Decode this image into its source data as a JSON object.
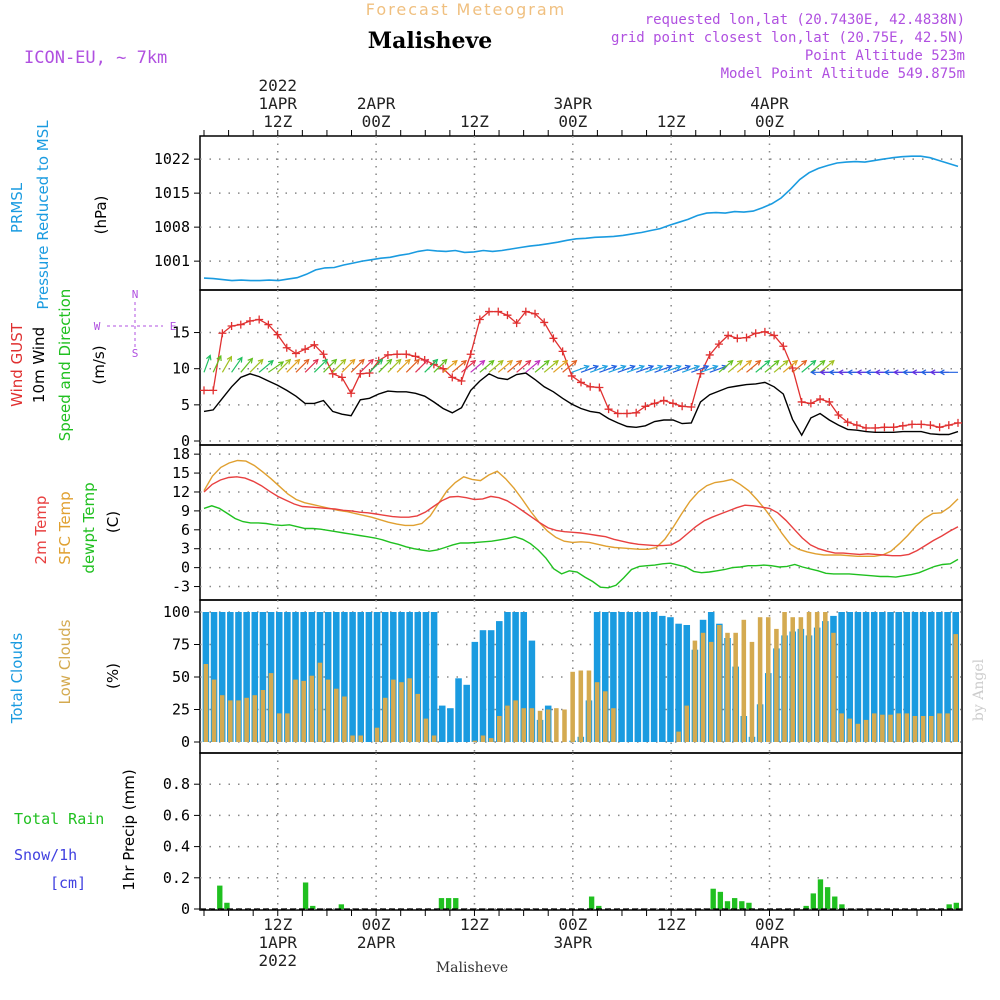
{
  "header": {
    "product": "Forecast Meteogram",
    "station": "Malisheve",
    "model": "ICON-EU, ~ 7km",
    "requested": "requested lon,lat (20.7430E, 42.4838N)",
    "grid": "grid point closest lon,lat (20.75E, 42.5N)",
    "point_alt": "Point Altitude 523m",
    "model_alt": "Model Point Altitude 549.875m",
    "watermark": "by Angel",
    "bottom_label": "Malisheve"
  },
  "colors": {
    "pressure": "#1a9be0",
    "gust": "#e03030",
    "wind": "#000000",
    "temp": "#e84040",
    "sfc": "#e0a030",
    "dewpt": "#20c020",
    "total_clouds": "#1a9be0",
    "low_clouds": "#d4aa50",
    "rain": "#20c020",
    "snow": "#4040e0",
    "purple": "#b050e0"
  },
  "time_axis": {
    "top_labels": [
      {
        "idx": 9,
        "lines": [
          "2022",
          "1APR",
          "12Z"
        ]
      },
      {
        "idx": 21,
        "lines": [
          "2APR",
          "00Z"
        ]
      },
      {
        "idx": 33,
        "lines": [
          "12Z"
        ]
      },
      {
        "idx": 45,
        "lines": [
          "3APR",
          "00Z"
        ]
      },
      {
        "idx": 57,
        "lines": [
          "12Z"
        ]
      },
      {
        "idx": 69,
        "lines": [
          "4APR",
          "00Z"
        ]
      }
    ],
    "bottom_labels": [
      {
        "idx": 9,
        "lines": [
          "12Z",
          "1APR",
          "2022"
        ]
      },
      {
        "idx": 21,
        "lines": [
          "00Z",
          "2APR"
        ]
      },
      {
        "idx": 33,
        "lines": [
          "12Z"
        ]
      },
      {
        "idx": 45,
        "lines": [
          "00Z",
          "3APR"
        ]
      },
      {
        "idx": 57,
        "lines": [
          "12Z"
        ]
      },
      {
        "idx": 69,
        "lines": [
          "00Z",
          "4APR"
        ]
      }
    ]
  },
  "chart_data": [
    {
      "type": "line",
      "panel": "pressure",
      "ylabel_lines": [
        "PRMSL",
        "Pressure Reduced to MSL"
      ],
      "unit": "(hPa)",
      "yticks": [
        1001,
        1008,
        1015,
        1022
      ],
      "ylim": [
        996.5,
        1024.5
      ],
      "series": [
        {
          "name": "PRMSL",
          "values": [
            997.5,
            997.4,
            997.2,
            997.0,
            997.1,
            997.0,
            997.0,
            997.1,
            997.0,
            997.3,
            997.6,
            998.3,
            999.2,
            999.6,
            999.7,
            1000.2,
            1000.6,
            1001.0,
            1001.3,
            1001.6,
            1001.8,
            1002.2,
            1002.5,
            1003.0,
            1003.3,
            1003.1,
            1003.0,
            1003.2,
            1002.8,
            1002.9,
            1003.2,
            1003.0,
            1003.2,
            1003.5,
            1003.8,
            1004.1,
            1004.3,
            1004.6,
            1004.9,
            1005.3,
            1005.6,
            1005.7,
            1005.9,
            1006.0,
            1006.1,
            1006.3,
            1006.6,
            1006.9,
            1007.3,
            1007.7,
            1008.4,
            1009.0,
            1009.6,
            1010.4,
            1010.9,
            1011.0,
            1010.9,
            1011.2,
            1011.1,
            1011.3,
            1012.0,
            1012.8,
            1014.0,
            1015.8,
            1017.8,
            1019.2,
            1020.1,
            1020.7,
            1021.2,
            1021.4,
            1021.5,
            1021.4,
            1021.7,
            1022.0,
            1022.3,
            1022.5,
            1022.6,
            1022.6,
            1022.3,
            1021.7,
            1021.1,
            1020.5
          ]
        }
      ]
    },
    {
      "type": "line",
      "panel": "wind",
      "ylabel_lines": [
        "Wind GUST",
        "10m Wind",
        "Speed and Direction"
      ],
      "unit": "(m/s)",
      "yticks": [
        0,
        5,
        10,
        15
      ],
      "ylim": [
        0,
        19.5
      ],
      "compass": [
        "N",
        "S",
        "W",
        "E"
      ],
      "series": [
        {
          "name": "Wind GUST",
          "values": [
            7.0,
            7.0,
            14.9,
            15.9,
            16.1,
            16.6,
            16.8,
            16.1,
            14.7,
            12.9,
            12.1,
            12.7,
            13.3,
            12.0,
            9.3,
            8.8,
            6.6,
            9.3,
            9.4,
            11.1,
            11.9,
            12.0,
            12.0,
            11.7,
            11.2,
            10.6,
            10.0,
            8.8,
            8.3,
            12.0,
            16.8,
            17.9,
            17.9,
            17.4,
            16.3,
            17.9,
            17.6,
            16.4,
            14.2,
            12.4,
            9.0,
            8.1,
            7.5,
            7.4,
            4.4,
            3.8,
            3.8,
            3.9,
            4.8,
            5.2,
            5.6,
            5.2,
            4.8,
            4.7,
            9.3,
            11.9,
            13.4,
            14.6,
            14.2,
            14.3,
            14.9,
            15.1,
            14.6,
            13.1,
            10.1,
            5.4,
            5.2,
            5.8,
            5.4,
            3.6,
            2.6,
            2.2,
            1.8,
            1.8,
            1.9,
            1.9,
            2.1,
            2.3,
            2.3,
            2.2,
            1.9,
            2.2,
            2.5
          ]
        },
        {
          "name": "10m Wind",
          "values": [
            4.1,
            4.3,
            5.9,
            7.5,
            8.8,
            9.3,
            8.9,
            8.3,
            7.7,
            7.0,
            6.2,
            5.2,
            5.2,
            5.6,
            4.1,
            3.7,
            3.5,
            5.7,
            5.9,
            6.5,
            6.9,
            6.8,
            6.8,
            6.6,
            6.2,
            5.4,
            4.5,
            3.9,
            4.6,
            7.0,
            8.3,
            9.3,
            8.7,
            8.5,
            9.2,
            9.4,
            8.5,
            7.5,
            6.8,
            5.9,
            5.1,
            4.5,
            4.1,
            3.9,
            3.1,
            2.5,
            2.0,
            1.9,
            2.1,
            2.7,
            2.9,
            2.9,
            2.4,
            2.5,
            5.4,
            6.4,
            6.9,
            7.4,
            7.6,
            7.8,
            7.9,
            8.1,
            7.5,
            6.5,
            3.0,
            0.8,
            3.2,
            3.8,
            2.9,
            2.2,
            1.6,
            1.5,
            1.3,
            1.2,
            1.2,
            1.2,
            1.3,
            1.3,
            1.3,
            1.0,
            0.9,
            0.9,
            1.3
          ]
        }
      ]
    },
    {
      "type": "line",
      "panel": "temperature",
      "ylabel_lines": [
        "2m Temp",
        "SFC Temp",
        "dewpt Temp"
      ],
      "unit": "(C)",
      "yticks": [
        -3,
        0,
        3,
        6,
        9,
        12,
        15,
        18
      ],
      "ylim": [
        -4.5,
        18.5
      ],
      "series": [
        {
          "name": "2m Temp",
          "values": [
            12.0,
            13.2,
            13.9,
            14.3,
            14.4,
            14.2,
            13.7,
            13.0,
            12.1,
            11.3,
            10.7,
            10.1,
            9.7,
            9.6,
            9.5,
            9.4,
            9.3,
            9.1,
            9.0,
            8.8,
            8.7,
            8.5,
            8.3,
            8.1,
            8.0,
            8.0,
            8.2,
            8.8,
            9.7,
            10.6,
            11.2,
            11.3,
            11.1,
            10.8,
            10.9,
            11.3,
            11.1,
            10.6,
            9.8,
            8.9,
            8.0,
            7.1,
            6.3,
            5.9,
            5.7,
            5.6,
            5.5,
            5.3,
            5.1,
            4.9,
            4.5,
            4.2,
            3.9,
            3.7,
            3.6,
            3.5,
            3.5,
            3.6,
            4.3,
            5.4,
            6.5,
            7.4,
            8.0,
            8.5,
            9.0,
            9.5,
            9.9,
            9.8,
            9.6,
            9.4,
            8.7,
            7.5,
            6.1,
            4.7,
            3.6,
            3.0,
            2.6,
            2.3,
            2.3,
            2.2,
            2.1,
            2.2,
            2.1,
            2.0,
            1.9,
            1.9,
            2.1,
            2.7,
            3.5,
            4.3,
            5.0,
            5.8,
            6.5
          ]
        },
        {
          "name": "SFC Temp",
          "values": [
            12.2,
            14.5,
            15.9,
            16.6,
            17.0,
            16.9,
            16.2,
            15.2,
            14.1,
            12.9,
            11.7,
            10.8,
            10.3,
            10.0,
            9.7,
            9.4,
            9.1,
            8.9,
            8.6,
            8.3,
            8.0,
            7.6,
            7.2,
            6.9,
            6.7,
            6.7,
            7.0,
            8.2,
            10.2,
            12.2,
            13.5,
            14.4,
            14.0,
            13.8,
            14.7,
            15.3,
            14.1,
            12.6,
            10.8,
            8.9,
            7.2,
            5.8,
            4.8,
            4.2,
            4.0,
            4.1,
            4.0,
            3.7,
            3.4,
            3.2,
            3.1,
            3.0,
            2.9,
            2.9,
            3.2,
            4.5,
            6.4,
            8.5,
            10.5,
            12.0,
            13.0,
            13.5,
            13.7,
            14.0,
            13.2,
            12.2,
            10.8,
            9.2,
            7.4,
            5.4,
            3.7,
            2.9,
            2.5,
            2.2,
            2.0,
            2.0,
            2.0,
            1.9,
            1.8,
            1.8,
            1.8,
            2.0,
            2.6,
            3.8,
            5.1,
            6.6,
            7.8,
            8.6,
            8.7,
            9.6,
            10.9
          ]
        },
        {
          "name": "dewpt Temp",
          "values": [
            9.4,
            9.8,
            9.4,
            8.6,
            7.8,
            7.3,
            7.1,
            7.1,
            7.0,
            6.8,
            6.7,
            6.8,
            6.5,
            6.2,
            6.2,
            6.1,
            5.9,
            5.7,
            5.5,
            5.3,
            5.1,
            4.9,
            4.7,
            4.4,
            4.0,
            3.7,
            3.3,
            3.0,
            2.8,
            2.6,
            2.8,
            3.2,
            3.6,
            3.9,
            3.9,
            4.0,
            4.1,
            4.2,
            4.4,
            4.6,
            4.9,
            4.5,
            3.8,
            2.8,
            1.5,
            -0.2,
            -1.0,
            -0.5,
            -0.7,
            -1.5,
            -2.2,
            -3.1,
            -3.2,
            -2.8,
            -1.6,
            -0.3,
            0.2,
            0.3,
            0.4,
            0.6,
            0.7,
            0.4,
            0.1,
            -0.6,
            -0.8,
            -0.7,
            -0.5,
            -0.3,
            0.0,
            0.1,
            0.3,
            0.3,
            0.4,
            0.3,
            0.1,
            0.2,
            0.5,
            0.1,
            -0.2,
            -0.5,
            -0.9,
            -1.0,
            -1.0,
            -1.0,
            -1.1,
            -1.2,
            -1.3,
            -1.4,
            -1.4,
            -1.5,
            -1.3,
            -1.1,
            -0.8,
            -0.3,
            0.2,
            0.5,
            0.6,
            1.3
          ]
        }
      ]
    },
    {
      "type": "bar",
      "panel": "clouds",
      "ylabel_lines": [
        "Total Clouds",
        "Low Clouds"
      ],
      "unit": "(%)",
      "yticks": [
        0,
        25,
        50,
        75,
        100
      ],
      "ylim": [
        0,
        100
      ],
      "series": [
        {
          "name": "Total Clouds",
          "values": [
            100,
            100,
            100,
            100,
            100,
            100,
            100,
            100,
            100,
            100,
            100,
            100,
            100,
            100,
            100,
            100,
            100,
            100,
            100,
            100,
            100,
            100,
            100,
            100,
            100,
            100,
            100,
            100,
            100,
            28,
            26,
            49,
            44,
            77,
            86,
            86,
            93,
            100,
            100,
            100,
            78,
            17,
            28,
            0,
            0,
            1,
            4,
            32,
            100,
            100,
            100,
            100,
            100,
            100,
            100,
            100,
            97,
            96,
            91,
            90,
            71,
            94,
            100,
            91,
            80,
            58,
            20,
            4,
            29,
            53,
            72,
            82,
            85,
            87,
            82,
            88,
            93,
            97,
            100,
            100,
            100,
            100,
            100,
            100,
            100,
            100,
            100,
            100,
            100,
            100,
            100,
            100,
            100
          ]
        },
        {
          "name": "Low Clouds",
          "values": [
            60,
            48,
            36,
            32,
            32,
            34,
            36,
            40,
            53,
            22,
            22,
            48,
            47,
            51,
            61,
            48,
            41,
            35,
            5,
            5,
            0,
            11,
            34,
            48,
            46,
            49,
            37,
            18,
            5,
            0,
            0,
            0,
            0,
            1,
            5,
            3,
            20,
            28,
            32,
            26,
            26,
            24,
            25,
            26,
            25,
            54,
            55,
            55,
            46,
            39,
            26,
            0,
            0,
            0,
            0,
            0,
            0,
            0,
            8,
            28,
            78,
            84,
            77,
            90,
            84,
            84,
            94,
            77,
            96,
            96,
            87,
            100,
            96,
            96,
            100,
            100,
            100,
            84,
            22,
            18,
            14,
            17,
            22,
            21,
            21,
            22,
            22,
            20,
            20,
            20,
            22,
            22,
            83
          ]
        }
      ]
    },
    {
      "type": "bar",
      "panel": "precip",
      "ylabel_lines": [
        "1hr Precip (mm)"
      ],
      "side_labels": [
        "Total Rain",
        "Snow/1h",
        "[cm]"
      ],
      "yticks": [
        0,
        0.2,
        0.4,
        0.6,
        0.8
      ],
      "ylim": [
        0,
        1.0
      ],
      "series": [
        {
          "name": "Total Rain",
          "values": [
            0,
            0,
            0.15,
            0.04,
            0,
            0,
            0,
            0,
            0,
            0,
            0,
            0,
            0,
            0,
            0.17,
            0.02,
            0,
            0,
            0,
            0.03,
            0,
            0,
            0,
            0,
            0,
            0,
            0,
            0,
            0,
            0,
            0,
            0,
            0,
            0.07,
            0.07,
            0.07,
            0,
            0,
            0,
            0,
            0,
            0,
            0,
            0,
            0,
            0,
            0,
            0,
            0,
            0,
            0,
            0,
            0,
            0,
            0.08,
            0.02,
            0,
            0,
            0,
            0,
            0,
            0,
            0,
            0,
            0,
            0,
            0,
            0,
            0,
            0,
            0,
            0.13,
            0.11,
            0.05,
            0.07,
            0.05,
            0.04,
            0,
            0,
            0,
            0,
            0,
            0,
            0,
            0.02,
            0.1,
            0.19,
            0.14,
            0.08,
            0.03,
            0,
            0,
            0,
            0,
            0,
            0,
            0,
            0,
            0,
            0,
            0,
            0,
            0,
            0,
            0.03,
            0.04
          ]
        }
      ]
    }
  ]
}
